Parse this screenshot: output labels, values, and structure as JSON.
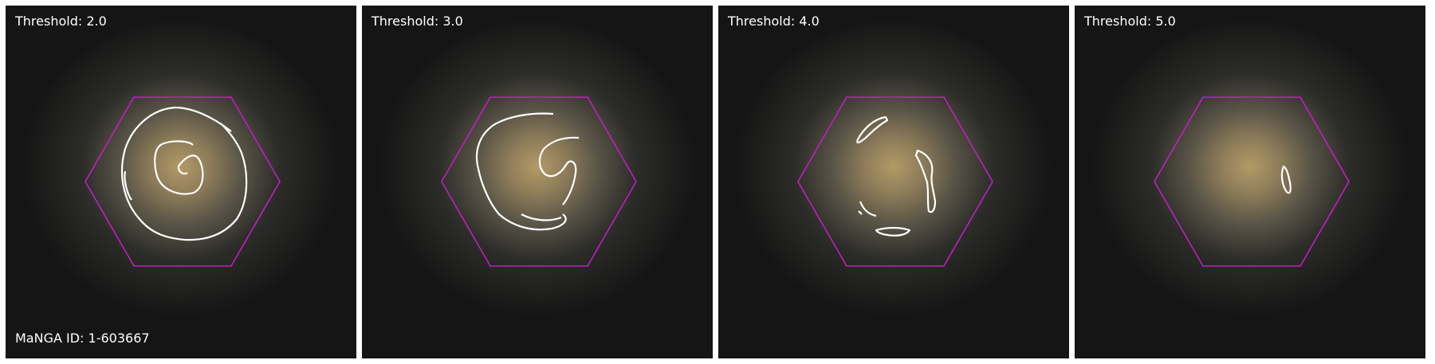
{
  "figure": {
    "manga_id_label": "MaNGA ID: 1-603667",
    "hexagon_color": "#c21fc2",
    "contour_color": "#ffffff",
    "panels": [
      {
        "threshold_label": "Threshold: 2.0"
      },
      {
        "threshold_label": "Threshold: 3.0"
      },
      {
        "threshold_label": "Threshold: 4.0"
      },
      {
        "threshold_label": "Threshold: 5.0"
      }
    ]
  }
}
